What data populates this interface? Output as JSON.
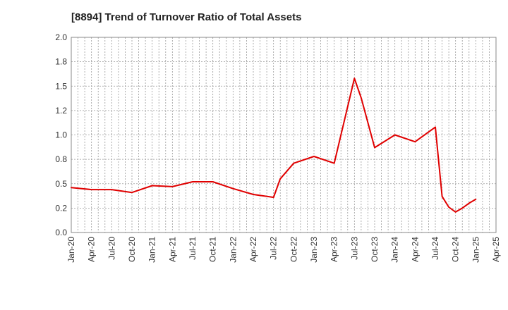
{
  "chart_data": {
    "type": "line",
    "title": "[8894]  Trend of Turnover Ratio of Total Assets",
    "xlabel": "",
    "ylabel": "",
    "ylim": [
      0,
      2.0
    ],
    "yticks": [
      "0.0",
      "0.2",
      "0.5",
      "0.8",
      "1.0",
      "1.2",
      "1.5",
      "1.8",
      "2.0"
    ],
    "xticks": [
      "Jan-20",
      "Apr-20",
      "Jul-20",
      "Oct-20",
      "Jan-21",
      "Apr-21",
      "Jul-21",
      "Oct-21",
      "Jan-22",
      "Apr-22",
      "Jul-22",
      "Oct-22",
      "Jan-23",
      "Apr-23",
      "Jul-23",
      "Oct-23",
      "Jan-24",
      "Apr-24",
      "Jul-24",
      "Oct-24",
      "Jan-25",
      "Apr-25"
    ],
    "grid": true,
    "line_color": "#e00000",
    "series": [
      {
        "points": [
          [
            "Jan-20",
            0.46
          ],
          [
            "Apr-20",
            0.44
          ],
          [
            "Jul-20",
            0.44
          ],
          [
            "Oct-20",
            0.41
          ],
          [
            "Jan-21",
            0.48
          ],
          [
            "Apr-21",
            0.47
          ],
          [
            "Jul-21",
            0.52
          ],
          [
            "Oct-21",
            0.52
          ],
          [
            "Jan-22",
            0.45
          ],
          [
            "Apr-22",
            0.39
          ],
          [
            "May-22",
            0.38
          ],
          [
            "Jul-22",
            0.36
          ],
          [
            "Aug-22",
            0.55
          ],
          [
            "Oct-22",
            0.71
          ],
          [
            "Jan-23",
            0.78
          ],
          [
            "Apr-23",
            0.71
          ],
          [
            "Jul-23",
            1.58
          ],
          [
            "Aug-23",
            1.38
          ],
          [
            "Oct-23",
            0.87
          ],
          [
            "Jan-24",
            1.0
          ],
          [
            "Apr-24",
            0.93
          ],
          [
            "Jul-24",
            1.08
          ],
          [
            "Aug-24",
            0.37
          ],
          [
            "Sep-24",
            0.26
          ],
          [
            "Oct-24",
            0.21
          ],
          [
            "Nov-24",
            0.25
          ],
          [
            "Dec-24",
            0.3
          ],
          [
            "Jan-25",
            0.34
          ]
        ]
      }
    ]
  }
}
